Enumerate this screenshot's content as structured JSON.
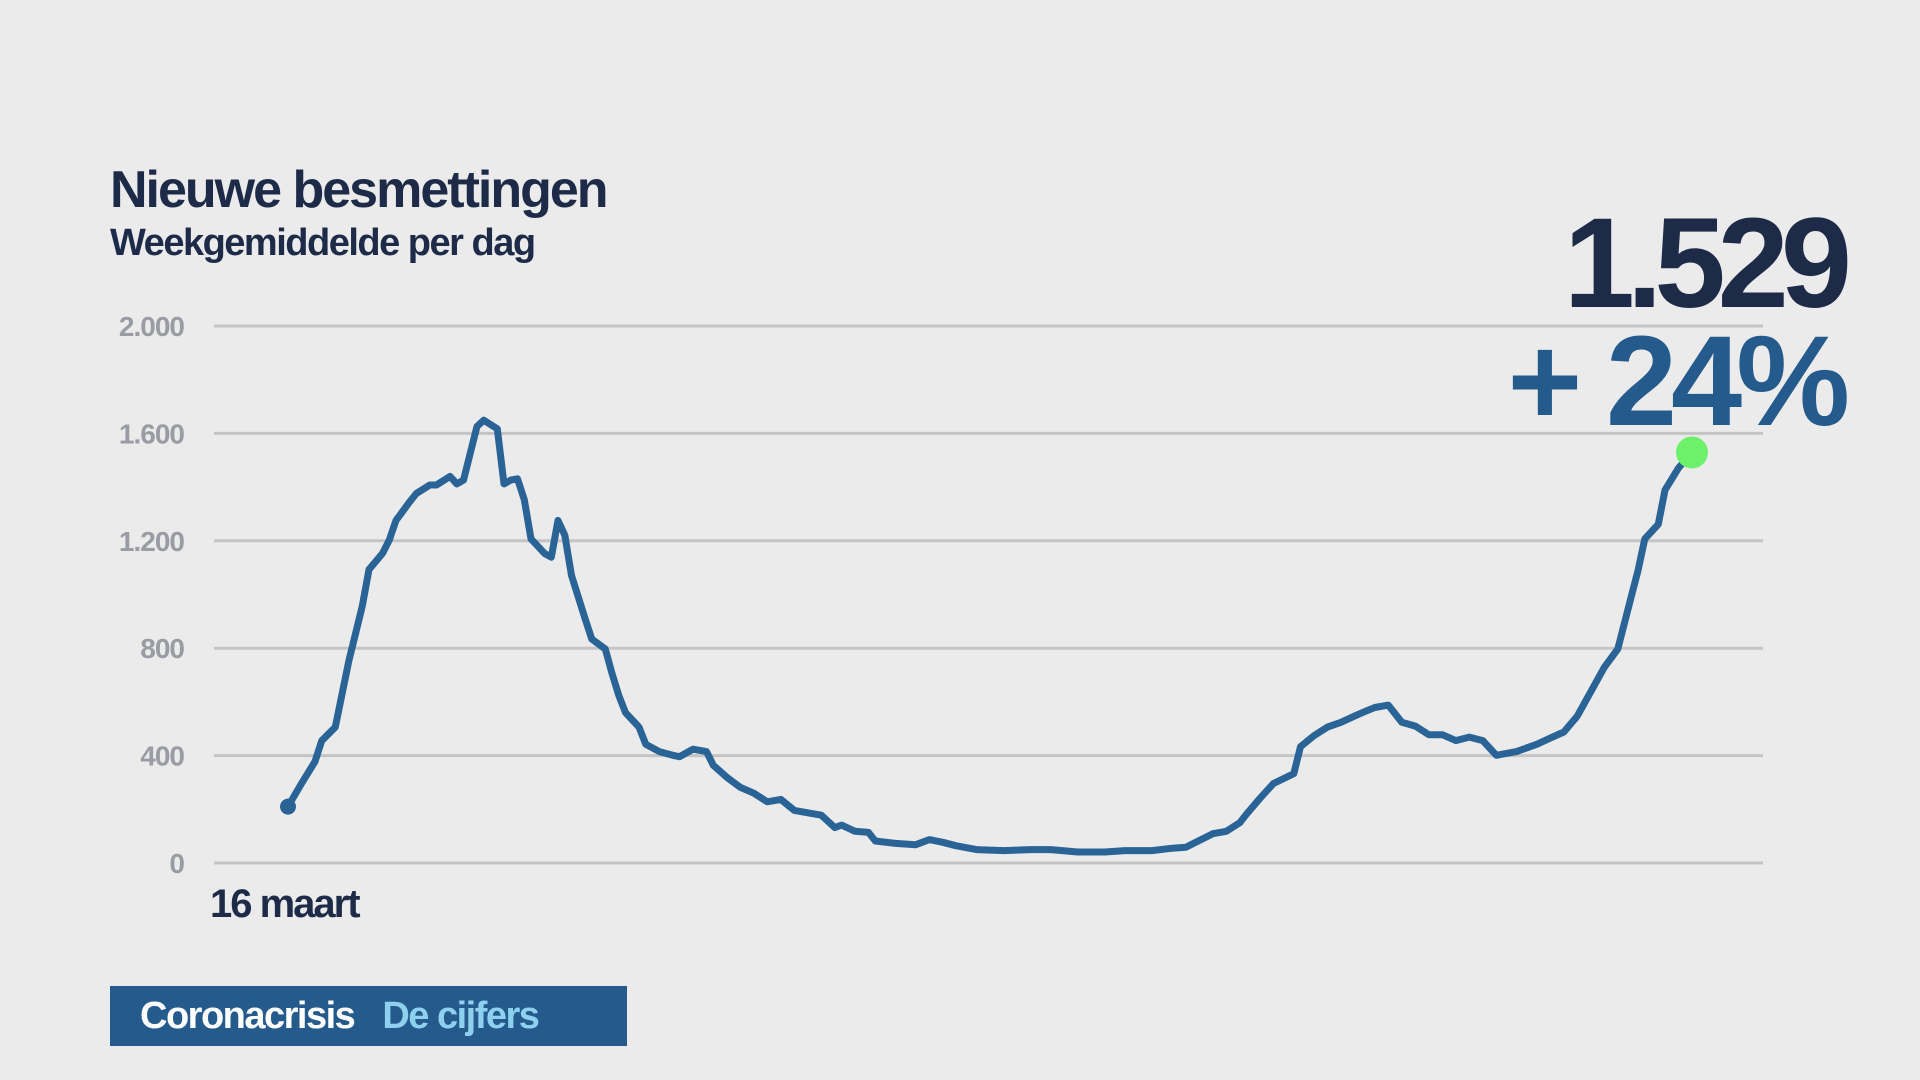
{
  "chart_data": {
    "type": "line",
    "title": "Nieuwe besmettingen",
    "subtitle": "Weekgemiddelde per dag",
    "xlabel": "16 maart",
    "ylabel": "",
    "ylim": [
      0,
      2000
    ],
    "yticks": [
      0,
      400,
      800,
      1200,
      1600,
      2000
    ],
    "ytick_labels": [
      "0",
      "400",
      "800",
      "1.200",
      "1.600",
      "2.000"
    ],
    "grid": true,
    "series": [
      {
        "name": "Weekgemiddelde per dag",
        "color": "#2a6496",
        "x": [
          0,
          2,
          4,
          5,
          7,
          9,
          11,
          12,
          14,
          15,
          16,
          18,
          19,
          21,
          22,
          24,
          25,
          26,
          28,
          29,
          31,
          32,
          33,
          34,
          35,
          36,
          38,
          39,
          40,
          41,
          42,
          44,
          45,
          47,
          48,
          49,
          50,
          52,
          53,
          55,
          57,
          58,
          60,
          62,
          63,
          65,
          67,
          69,
          71,
          73,
          75,
          77,
          79,
          81,
          82,
          84,
          86,
          87,
          90,
          93,
          95,
          97,
          99,
          102,
          106,
          110,
          113,
          117,
          121,
          124,
          128,
          131,
          133,
          137,
          139,
          141,
          142,
          144,
          146,
          149,
          150,
          152,
          154,
          156,
          158,
          160,
          161,
          163,
          165,
          167,
          169,
          171,
          173,
          175,
          177,
          179,
          182,
          185,
          187,
          189,
          191,
          193,
          195,
          197,
          199,
          200,
          201,
          203,
          204,
          206,
          208
        ],
        "values": [
          210,
          296,
          378,
          456,
          506,
          752,
          957,
          1093,
          1153,
          1203,
          1276,
          1344,
          1376,
          1408,
          1408,
          1440,
          1412,
          1426,
          1626,
          1649,
          1617,
          1412,
          1426,
          1431,
          1353,
          1207,
          1153,
          1139,
          1276,
          1221,
          1071,
          911,
          834,
          797,
          706,
          624,
          560,
          506,
          442,
          415,
          401,
          396,
          424,
          415,
          364,
          319,
          282,
          260,
          228,
          237,
          196,
          187,
          178,
          132,
          141,
          118,
          114,
          82,
          73,
          68,
          87,
          77,
          64,
          50,
          46,
          50,
          50,
          41,
          41,
          46,
          46,
          55,
          59,
          109,
          118,
          150,
          182,
          241,
          296,
          333,
          433,
          474,
          506,
          524,
          547,
          569,
          579,
          588,
          524,
          510,
          478,
          478,
          456,
          469,
          456,
          401,
          415,
          442,
          465,
          488,
          547,
          638,
          729,
          797,
          993,
          1089,
          1207,
          1262,
          1389,
          1471,
          1529
        ]
      }
    ],
    "latest_value": "1.529",
    "change": "+ 24%",
    "highlight_color": "#6df06a"
  },
  "footer": {
    "brand": "Coronacrisis",
    "section": "De cijfers"
  }
}
